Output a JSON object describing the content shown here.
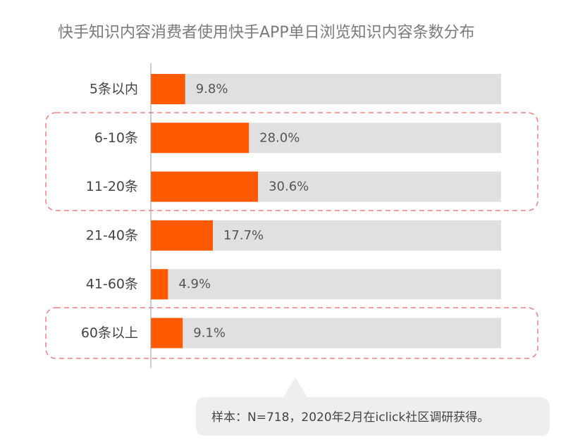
{
  "chart_data": {
    "type": "bar",
    "orientation": "horizontal",
    "title": "快手知识内容消费者使用快手APP单日浏览知识内容条数分布",
    "categories": [
      "5条以内",
      "6-10条",
      "11-20条",
      "21-40条",
      "41-60条",
      "60条以上"
    ],
    "values": [
      9.8,
      28.0,
      30.6,
      17.7,
      4.9,
      9.1
    ],
    "value_labels": [
      "9.8%",
      "28.0%",
      "30.6%",
      "17.7%",
      "4.9%",
      "9.1%"
    ],
    "xlim": [
      0,
      100
    ],
    "unit": "%",
    "highlighted_groups": [
      [
        "6-10条",
        "11-20条"
      ],
      [
        "60条以上"
      ]
    ],
    "note": "样本：N=718，2020年2月在iclick社区调研获得。"
  },
  "colors": {
    "bar": "#ff5a00",
    "track": "#e0e0e0",
    "highlight_border": "#f08080",
    "axis": "#999999",
    "note_background": "#eeeeee"
  }
}
